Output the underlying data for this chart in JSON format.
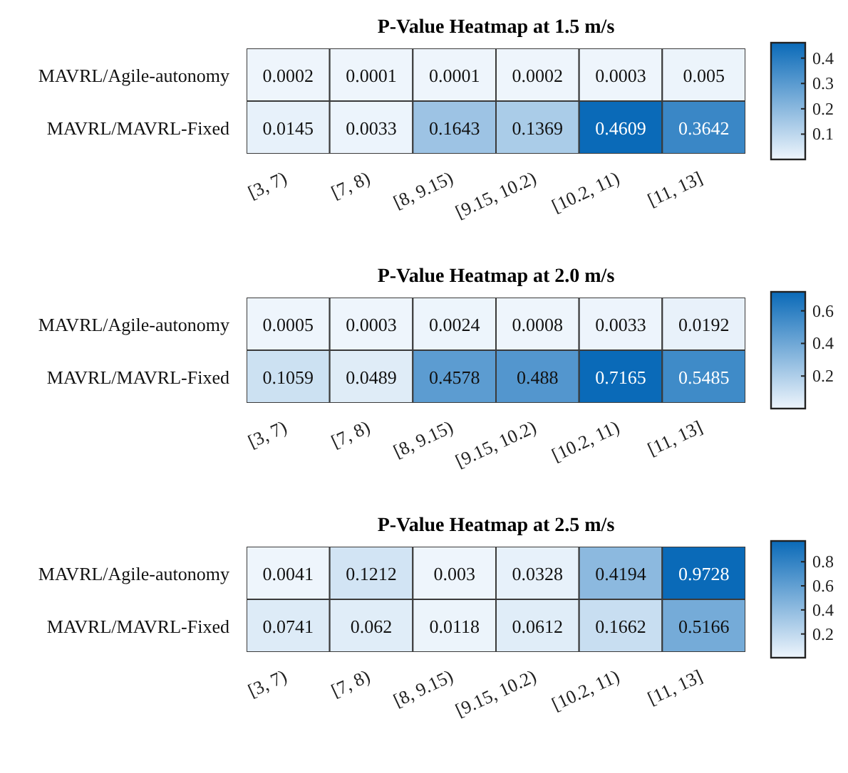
{
  "chart_data": [
    {
      "type": "heatmap",
      "title": "P-Value Heatmap at 1.5 m/s",
      "categories": [
        "[3, 7)",
        "[7, 8)",
        "[8, 9.15)",
        "[9.15, 10.2)",
        "[10.2, 11)",
        "[11, 13]"
      ],
      "y_categories": [
        "MAVRL/Agile-autonomy",
        "MAVRL/MAVRL-Fixed"
      ],
      "cells": [
        [
          0.0002,
          0.0001,
          0.0001,
          0.0002,
          0.0003,
          0.005
        ],
        [
          0.0145,
          0.0033,
          0.1643,
          0.1369,
          0.4609,
          0.3642
        ]
      ],
      "clim": [
        0.0001,
        0.4609
      ],
      "cticks": [
        0.1,
        0.2,
        0.3,
        0.4
      ],
      "data_labels": true
    },
    {
      "type": "heatmap",
      "title": "P-Value Heatmap at 2.0 m/s",
      "categories": [
        "[3, 7)",
        "[7, 8)",
        "[8, 9.15)",
        "[9.15, 10.2)",
        "[10.2, 11)",
        "[11, 13]"
      ],
      "y_categories": [
        "MAVRL/Agile-autonomy",
        "MAVRL/MAVRL-Fixed"
      ],
      "cells": [
        [
          0.0005,
          0.0003,
          0.0024,
          0.0008,
          0.0033,
          0.0192
        ],
        [
          0.1059,
          0.0489,
          0.4578,
          0.488,
          0.7165,
          0.5485
        ]
      ],
      "clim": [
        0.0003,
        0.7165
      ],
      "cticks": [
        0.2,
        0.4,
        0.6
      ],
      "data_labels": true
    },
    {
      "type": "heatmap",
      "title": "P-Value Heatmap at 2.5 m/s",
      "categories": [
        "[3, 7)",
        "[7, 8)",
        "[8, 9.15)",
        "[9.15, 10.2)",
        "[10.2, 11)",
        "[11, 13]"
      ],
      "y_categories": [
        "MAVRL/Agile-autonomy",
        "MAVRL/MAVRL-Fixed"
      ],
      "cells": [
        [
          0.0041,
          0.1212,
          0.003,
          0.0328,
          0.4194,
          0.9728
        ],
        [
          0.0741,
          0.062,
          0.0118,
          0.0612,
          0.1662,
          0.5166
        ]
      ],
      "clim": [
        0.003,
        0.9728
      ],
      "cticks": [
        0.2,
        0.4,
        0.6,
        0.8
      ],
      "data_labels": true
    }
  ]
}
